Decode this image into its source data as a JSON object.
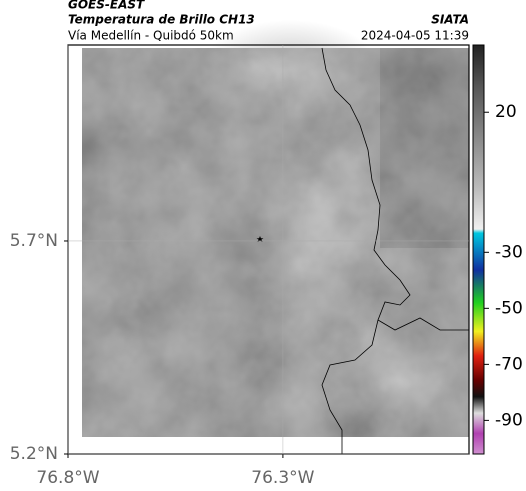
{
  "chart_data": {
    "type": "map",
    "title": "GOES-EAST",
    "subtitle": "Temperatura de Brillo CH13",
    "source": "SIATA",
    "location": "Vía Medellín - Quibdó 50km",
    "timestamp": "2024-04-05 11:39",
    "xlim": [
      -76.8,
      -75.867
    ],
    "ylim": [
      5.2,
      6.16
    ],
    "xticks": [
      {
        "value": -76.8,
        "label": "76.8°W"
      },
      {
        "value": -76.3,
        "label": "76.3°W"
      }
    ],
    "yticks": [
      {
        "value": 5.2,
        "label": "5.2°N"
      },
      {
        "value": 5.7,
        "label": "5.7°N"
      }
    ],
    "grid": true,
    "clim": [
      -102,
      44
    ],
    "cticks": [
      20,
      -30,
      -50,
      -70,
      -90
    ]
  }
}
